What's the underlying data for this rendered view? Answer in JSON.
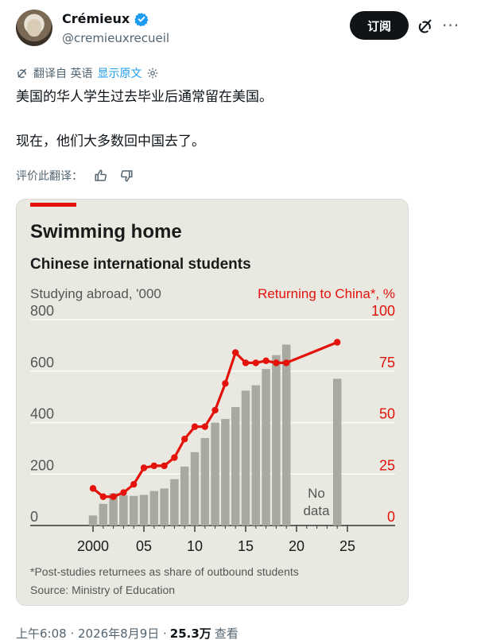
{
  "author": {
    "display_name": "Crémieux",
    "handle": "@cremieuxrecueil",
    "verified_color": "#1d9bf0"
  },
  "actions": {
    "subscribe_label": "订阅",
    "grok_icon": "grok-icon",
    "more_icon": "more-icon"
  },
  "translation": {
    "label": "翻译自 英语",
    "show_original": "显示原文",
    "rate_label": "评价此翻译："
  },
  "tweet": {
    "line1": "美国的华人学生过去毕业后通常留在美国。",
    "line2": "现在，他们大多数回中国去了。"
  },
  "meta": {
    "time": "上午6:08 · 2026年8月9日 · ",
    "views_count": "25.3万",
    "views_label": "查看"
  },
  "chart_data": {
    "type": "bar+line",
    "title": "Swimming home",
    "subtitle": "Chinese international students",
    "left_axis_label": "Studying abroad, '000",
    "right_axis_label": "Returning to China*, %",
    "left_ticks": [
      "800",
      "600",
      "400",
      "200",
      "0"
    ],
    "right_ticks": [
      "100",
      "75",
      "50",
      "25",
      "0"
    ],
    "x_ticks": [
      "2000",
      "05",
      "10",
      "15",
      "20",
      "25"
    ],
    "left_ylim": [
      0,
      800
    ],
    "right_ylim": [
      0,
      100
    ],
    "xlim": [
      1999,
      2025
    ],
    "bars": {
      "name": "Studying abroad",
      "x": [
        2000,
        2001,
        2002,
        2003,
        2004,
        2005,
        2006,
        2007,
        2008,
        2009,
        2010,
        2011,
        2012,
        2013,
        2014,
        2015,
        2016,
        2017,
        2018,
        2019,
        2024
      ],
      "values": [
        39,
        84,
        125,
        117,
        115,
        119,
        134,
        144,
        180,
        229,
        285,
        340,
        400,
        414,
        460,
        524,
        545,
        608,
        662,
        703,
        570
      ],
      "color": "#a9a9a1"
    },
    "line": {
      "name": "Returning to China",
      "x": [
        2000,
        2001,
        2002,
        2003,
        2004,
        2005,
        2006,
        2007,
        2008,
        2009,
        2010,
        2011,
        2012,
        2013,
        2014,
        2015,
        2016,
        2017,
        2018,
        2019,
        2024
      ],
      "values": [
        18,
        14,
        14,
        16,
        20,
        28,
        29,
        29,
        33,
        42,
        48,
        48,
        56,
        69,
        84,
        79,
        79,
        80,
        79,
        79,
        89
      ],
      "color": "#e3120b"
    },
    "no_data_label_1": "No",
    "no_data_label_2": "data",
    "footnote": "*Post-studies returnees as share of outbound students",
    "source": "Source: Ministry of Education",
    "background": "#e9e9e2",
    "accent": "#e3120b"
  }
}
